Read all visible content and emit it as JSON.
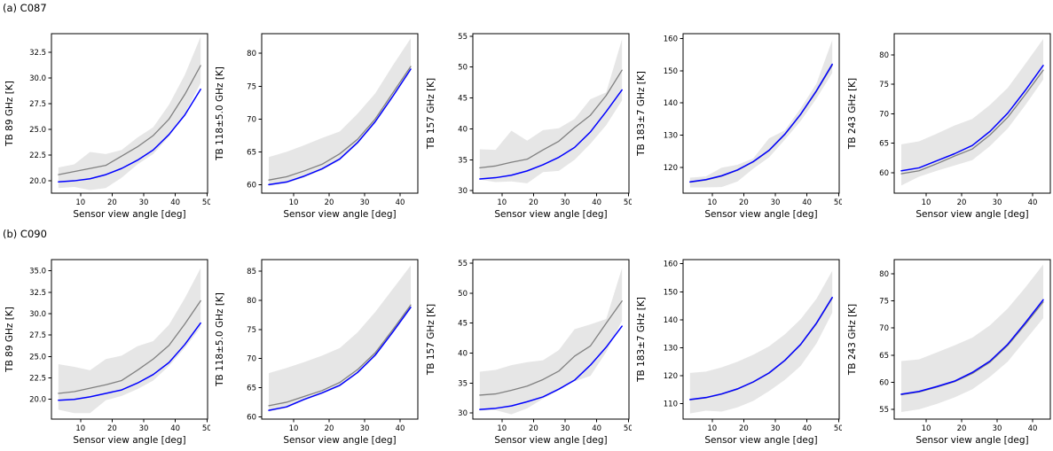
{
  "figure": {
    "background": "#ffffff"
  },
  "rows": [
    {
      "id": "a",
      "title": "(a) C087"
    },
    {
      "id": "b",
      "title": "(b) C090"
    }
  ],
  "styles": {
    "blue_line": "#0000ff",
    "gray_line": "#808080",
    "band_fill": "#c8c8c8",
    "band_opacity": 0.45,
    "axis_color": "#000000"
  },
  "chart_data": [
    {
      "id": "a-89",
      "row": "a",
      "type": "line",
      "ylabel": "TB 89 GHz [K]",
      "xlabel": "Sensor view angle [deg]",
      "x": [
        3,
        8,
        13,
        18,
        23,
        28,
        33,
        38,
        43,
        48
      ],
      "series": [
        {
          "name": "gray-mean",
          "color": "#808080",
          "values": [
            20.6,
            20.9,
            21.2,
            21.5,
            22.4,
            23.3,
            24.4,
            26.0,
            28.4,
            31.2
          ]
        },
        {
          "name": "blue-line",
          "color": "#0000ff",
          "values": [
            19.9,
            20.0,
            20.2,
            20.6,
            21.2,
            22.0,
            23.0,
            24.5,
            26.4,
            28.9
          ]
        }
      ],
      "band": {
        "upper": [
          21.3,
          21.6,
          22.8,
          22.6,
          23.0,
          24.2,
          25.2,
          27.4,
          30.3,
          34.0
        ],
        "lower": [
          19.3,
          19.4,
          19.1,
          19.3,
          20.3,
          21.6,
          22.6,
          24.3,
          26.5,
          29.5
        ]
      },
      "xlim": [
        0.8,
        50.2
      ],
      "ylim": [
        18.8,
        34.3
      ],
      "xticks": [
        10,
        20,
        30,
        40,
        50
      ],
      "xtick_labels": [
        "10",
        "20",
        "30",
        "40",
        "50"
      ],
      "yticks": [
        20.0,
        22.5,
        25.0,
        27.5,
        30.0,
        32.5
      ],
      "ytick_labels": [
        "20.0",
        "22.5",
        "25.0",
        "27.5",
        "30.0",
        "32.5"
      ]
    },
    {
      "id": "a-118",
      "row": "a",
      "type": "line",
      "ylabel": "TB 118±5.0 GHz [K]",
      "xlabel": "Sensor view angle [deg]",
      "x": [
        3,
        8,
        13,
        18,
        23,
        28,
        33,
        38,
        43
      ],
      "series": [
        {
          "name": "gray-mean",
          "color": "#808080",
          "values": [
            60.7,
            61.2,
            62.1,
            63.1,
            64.7,
            66.9,
            70.0,
            74.0,
            78.0
          ]
        },
        {
          "name": "blue-line",
          "color": "#0000ff",
          "values": [
            60.0,
            60.4,
            61.3,
            62.4,
            63.9,
            66.4,
            69.6,
            73.5,
            77.6
          ]
        }
      ],
      "band": {
        "upper": [
          64.2,
          65.0,
          66.0,
          67.1,
          68.1,
          70.8,
          73.9,
          78.2,
          82.3
        ],
        "lower": [
          59.8,
          60.2,
          61.1,
          62.2,
          63.7,
          66.2,
          69.4,
          73.3,
          77.3
        ]
      },
      "xlim": [
        1.0,
        45.0
      ],
      "ylim": [
        58.7,
        83.0
      ],
      "xticks": [
        10,
        20,
        30,
        40
      ],
      "xtick_labels": [
        "10",
        "20",
        "30",
        "40"
      ],
      "yticks": [
        60,
        65,
        70,
        75,
        80
      ],
      "ytick_labels": [
        "60",
        "65",
        "70",
        "75",
        "80"
      ]
    },
    {
      "id": "a-157",
      "row": "a",
      "type": "line",
      "ylabel": "TB 157 GHz [K]",
      "xlabel": "Sensor view angle [deg]",
      "x": [
        3,
        8,
        13,
        18,
        23,
        28,
        33,
        38,
        43,
        48
      ],
      "series": [
        {
          "name": "gray-mean",
          "color": "#808080",
          "values": [
            33.7,
            34.0,
            34.6,
            35.1,
            36.6,
            38.0,
            40.2,
            42.2,
            45.4,
            49.5
          ]
        },
        {
          "name": "blue-line",
          "color": "#0000ff",
          "values": [
            31.9,
            32.1,
            32.5,
            33.2,
            34.2,
            35.4,
            37.0,
            39.5,
            42.8,
            46.3
          ]
        }
      ],
      "band": {
        "upper": [
          36.7,
          36.6,
          39.7,
          38.1,
          39.8,
          40.1,
          41.6,
          44.8,
          45.9,
          54.5
        ],
        "lower": [
          31.8,
          31.4,
          31.5,
          31.2,
          33.0,
          33.2,
          35.0,
          37.6,
          40.6,
          44.6
        ]
      },
      "xlim": [
        0.8,
        50.2
      ],
      "ylim": [
        29.6,
        55.4
      ],
      "xticks": [
        10,
        20,
        30,
        40,
        50
      ],
      "xtick_labels": [
        "10",
        "20",
        "30",
        "40",
        "50"
      ],
      "yticks": [
        30,
        35,
        40,
        45,
        50,
        55
      ],
      "ytick_labels": [
        "30",
        "35",
        "40",
        "45",
        "50",
        "55"
      ]
    },
    {
      "id": "a-183",
      "row": "a",
      "type": "line",
      "ylabel": "TB 183±7 GHz [K]",
      "xlabel": "Sensor view angle [deg]",
      "x": [
        3,
        8,
        13,
        18,
        23,
        28,
        33,
        38,
        43,
        48
      ],
      "series": [
        {
          "name": "gray-mean",
          "color": "#808080",
          "values": [
            115.4,
            116.1,
            117.3,
            119.1,
            121.7,
            125.2,
            130.2,
            136.4,
            143.6,
            151.7
          ]
        },
        {
          "name": "blue-line",
          "color": "#0000ff",
          "values": [
            115.5,
            116.2,
            117.4,
            119.2,
            121.8,
            125.3,
            130.3,
            136.5,
            143.8,
            152.0
          ]
        }
      ],
      "band": {
        "upper": [
          116.8,
          117.2,
          119.9,
          120.8,
          122.8,
          129.0,
          131.5,
          138.3,
          146.0,
          159.5
        ],
        "lower": [
          113.8,
          113.8,
          113.9,
          115.6,
          119.6,
          123.1,
          128.6,
          134.4,
          141.4,
          149.3
        ]
      },
      "xlim": [
        0.8,
        50.2
      ],
      "ylim": [
        112.0,
        161.5
      ],
      "xticks": [
        10,
        20,
        30,
        40,
        50
      ],
      "xtick_labels": [
        "10",
        "20",
        "30",
        "40",
        "50"
      ],
      "yticks": [
        120,
        130,
        140,
        150,
        160
      ],
      "ytick_labels": [
        "120",
        "130",
        "140",
        "150",
        "160"
      ]
    },
    {
      "id": "a-243",
      "row": "a",
      "type": "line",
      "ylabel": "TB 243 GHz [K]",
      "xlabel": "Sensor view angle [deg]",
      "x": [
        3,
        8,
        13,
        18,
        23,
        28,
        33,
        38,
        43
      ],
      "series": [
        {
          "name": "gray-mean",
          "color": "#808080",
          "values": [
            59.8,
            60.3,
            61.5,
            62.8,
            64.0,
            66.4,
            69.4,
            73.3,
            77.4
          ]
        },
        {
          "name": "blue-line",
          "color": "#0000ff",
          "values": [
            60.3,
            60.8,
            62.0,
            63.2,
            64.6,
            67.0,
            70.1,
            74.0,
            78.2
          ]
        }
      ],
      "band": {
        "upper": [
          64.8,
          65.3,
          66.6,
          68.0,
          69.1,
          71.5,
          74.4,
          78.5,
          82.7
        ],
        "lower": [
          57.8,
          59.3,
          60.3,
          61.2,
          62.1,
          64.5,
          67.5,
          71.5,
          75.8
        ]
      },
      "xlim": [
        1.0,
        45.0
      ],
      "ylim": [
        56.5,
        83.6
      ],
      "xticks": [
        10,
        20,
        30,
        40
      ],
      "xtick_labels": [
        "10",
        "20",
        "30",
        "40"
      ],
      "yticks": [
        60,
        65,
        70,
        75,
        80
      ],
      "ytick_labels": [
        "60",
        "65",
        "70",
        "75",
        "80"
      ]
    },
    {
      "id": "b-89",
      "row": "b",
      "type": "line",
      "ylabel": "TB 89 GHz [K]",
      "xlabel": "Sensor view angle [deg]",
      "x": [
        3,
        8,
        13,
        18,
        23,
        28,
        33,
        38,
        43,
        48
      ],
      "series": [
        {
          "name": "gray-mean",
          "color": "#808080",
          "values": [
            20.7,
            20.9,
            21.3,
            21.7,
            22.2,
            23.4,
            24.7,
            26.3,
            28.8,
            31.5
          ]
        },
        {
          "name": "blue-line",
          "color": "#0000ff",
          "values": [
            19.9,
            20.0,
            20.3,
            20.7,
            21.1,
            21.9,
            22.9,
            24.3,
            26.4,
            28.9
          ]
        }
      ],
      "band": {
        "upper": [
          24.1,
          23.8,
          23.4,
          24.7,
          25.1,
          26.2,
          26.8,
          28.7,
          31.8,
          35.3
        ],
        "lower": [
          18.8,
          18.4,
          18.4,
          19.9,
          20.4,
          21.2,
          22.2,
          23.9,
          26.0,
          28.4
        ]
      },
      "xlim": [
        0.8,
        50.2
      ],
      "ylim": [
        17.7,
        36.3
      ],
      "xticks": [
        10,
        20,
        30,
        40,
        50
      ],
      "xtick_labels": [
        "10",
        "20",
        "30",
        "40",
        "50"
      ],
      "yticks": [
        20.0,
        22.5,
        25.0,
        27.5,
        30.0,
        32.5,
        35.0
      ],
      "ytick_labels": [
        "20.0",
        "22.5",
        "25.0",
        "27.5",
        "30.0",
        "32.5",
        "35.0"
      ]
    },
    {
      "id": "b-118",
      "row": "b",
      "type": "line",
      "ylabel": "TB 118±5.0 GHz [K]",
      "xlabel": "Sensor view angle [deg]",
      "x": [
        3,
        8,
        13,
        18,
        23,
        28,
        33,
        38,
        43
      ],
      "series": [
        {
          "name": "gray-mean",
          "color": "#808080",
          "values": [
            61.9,
            62.5,
            63.5,
            64.5,
            65.9,
            68.1,
            71.0,
            75.0,
            79.2
          ]
        },
        {
          "name": "blue-line",
          "color": "#0000ff",
          "values": [
            61.1,
            61.7,
            63.0,
            64.1,
            65.4,
            67.6,
            70.6,
            74.6,
            78.8
          ]
        }
      ],
      "band": {
        "upper": [
          67.5,
          68.4,
          69.4,
          70.5,
          71.8,
          74.5,
          78.0,
          82.0,
          86.0
        ],
        "lower": [
          60.9,
          61.5,
          62.8,
          63.9,
          65.2,
          67.4,
          70.4,
          74.4,
          78.5
        ]
      },
      "xlim": [
        1.0,
        45.0
      ],
      "ylim": [
        59.6,
        87.0
      ],
      "xticks": [
        10,
        20,
        30,
        40
      ],
      "xtick_labels": [
        "10",
        "20",
        "30",
        "40"
      ],
      "yticks": [
        60,
        65,
        70,
        75,
        80,
        85
      ],
      "ytick_labels": [
        "60",
        "65",
        "70",
        "75",
        "80",
        "85"
      ]
    },
    {
      "id": "b-157",
      "row": "b",
      "type": "line",
      "ylabel": "TB 157 GHz [K]",
      "xlabel": "Sensor view angle [deg]",
      "x": [
        3,
        8,
        13,
        18,
        23,
        28,
        33,
        38,
        43,
        48
      ],
      "series": [
        {
          "name": "gray-mean",
          "color": "#808080",
          "values": [
            33.0,
            33.2,
            33.8,
            34.5,
            35.6,
            37.0,
            39.5,
            41.2,
            45.0,
            48.7
          ]
        },
        {
          "name": "blue-line",
          "color": "#0000ff",
          "values": [
            30.6,
            30.8,
            31.2,
            31.9,
            32.7,
            34.0,
            35.5,
            38.0,
            41.0,
            44.5
          ]
        }
      ],
      "band": {
        "upper": [
          36.9,
          37.2,
          38.0,
          38.5,
          38.8,
          40.5,
          44.0,
          44.8,
          45.7,
          54.2
        ],
        "lower": [
          30.4,
          30.5,
          29.8,
          30.8,
          32.4,
          33.8,
          35.3,
          36.2,
          40.2,
          45.4
        ]
      },
      "xlim": [
        0.8,
        50.2
      ],
      "ylim": [
        29.0,
        55.6
      ],
      "xticks": [
        10,
        20,
        30,
        40,
        50
      ],
      "xtick_labels": [
        "10",
        "20",
        "30",
        "40",
        "50"
      ],
      "yticks": [
        30,
        35,
        40,
        45,
        50,
        55
      ],
      "ytick_labels": [
        "30",
        "35",
        "40",
        "45",
        "50",
        "55"
      ]
    },
    {
      "id": "b-183",
      "row": "b",
      "type": "line",
      "ylabel": "TB 183±7 GHz [K]",
      "xlabel": "Sensor view angle [deg]",
      "x": [
        3,
        8,
        13,
        18,
        23,
        28,
        33,
        38,
        43,
        48
      ],
      "series": [
        {
          "name": "gray-mean",
          "color": "#808080",
          "values": [
            111.4,
            112.1,
            113.4,
            115.2,
            117.7,
            120.9,
            125.4,
            131.1,
            138.6,
            147.7
          ]
        },
        {
          "name": "blue-line",
          "color": "#0000ff",
          "values": [
            111.5,
            112.2,
            113.5,
            115.3,
            117.8,
            121.0,
            125.5,
            131.2,
            138.8,
            148.0
          ]
        }
      ],
      "band": {
        "upper": [
          121.0,
          121.5,
          123.0,
          125.0,
          127.5,
          130.5,
          134.8,
          140.2,
          147.5,
          157.5
        ],
        "lower": [
          106.5,
          107.5,
          107.2,
          108.7,
          111.0,
          114.5,
          118.5,
          123.5,
          131.5,
          142.5
        ]
      },
      "xlim": [
        0.8,
        50.2
      ],
      "ylim": [
        104.5,
        161.5
      ],
      "xticks": [
        10,
        20,
        30,
        40,
        50
      ],
      "xtick_labels": [
        "10",
        "20",
        "30",
        "40",
        "50"
      ],
      "yticks": [
        110,
        120,
        130,
        140,
        150,
        160
      ],
      "ytick_labels": [
        "110",
        "120",
        "130",
        "140",
        "150",
        "160"
      ]
    },
    {
      "id": "b-243",
      "row": "b",
      "type": "line",
      "ylabel": "TB 243 GHz [K]",
      "xlabel": "Sensor view angle [deg]",
      "x": [
        3,
        8,
        13,
        18,
        23,
        28,
        33,
        38,
        43
      ],
      "series": [
        {
          "name": "gray-mean",
          "color": "#808080",
          "values": [
            57.7,
            58.2,
            59.1,
            60.1,
            61.6,
            63.7,
            66.8,
            70.7,
            74.8
          ]
        },
        {
          "name": "blue-line",
          "color": "#0000ff",
          "values": [
            57.8,
            58.3,
            59.2,
            60.2,
            61.8,
            63.9,
            67.0,
            71.0,
            75.2
          ]
        }
      ],
      "band": {
        "upper": [
          63.9,
          64.2,
          65.5,
          66.8,
          68.2,
          70.5,
          73.6,
          77.5,
          81.7
        ],
        "lower": [
          54.5,
          55.0,
          56.0,
          57.2,
          58.7,
          61.0,
          63.8,
          67.8,
          71.8
        ]
      },
      "xlim": [
        1.0,
        45.0
      ],
      "ylim": [
        53.2,
        82.6
      ],
      "xticks": [
        10,
        20,
        30,
        40
      ],
      "xtick_labels": [
        "10",
        "20",
        "30",
        "40"
      ],
      "yticks": [
        55,
        60,
        65,
        70,
        75,
        80
      ],
      "ytick_labels": [
        "55",
        "60",
        "65",
        "70",
        "75",
        "80"
      ]
    }
  ]
}
